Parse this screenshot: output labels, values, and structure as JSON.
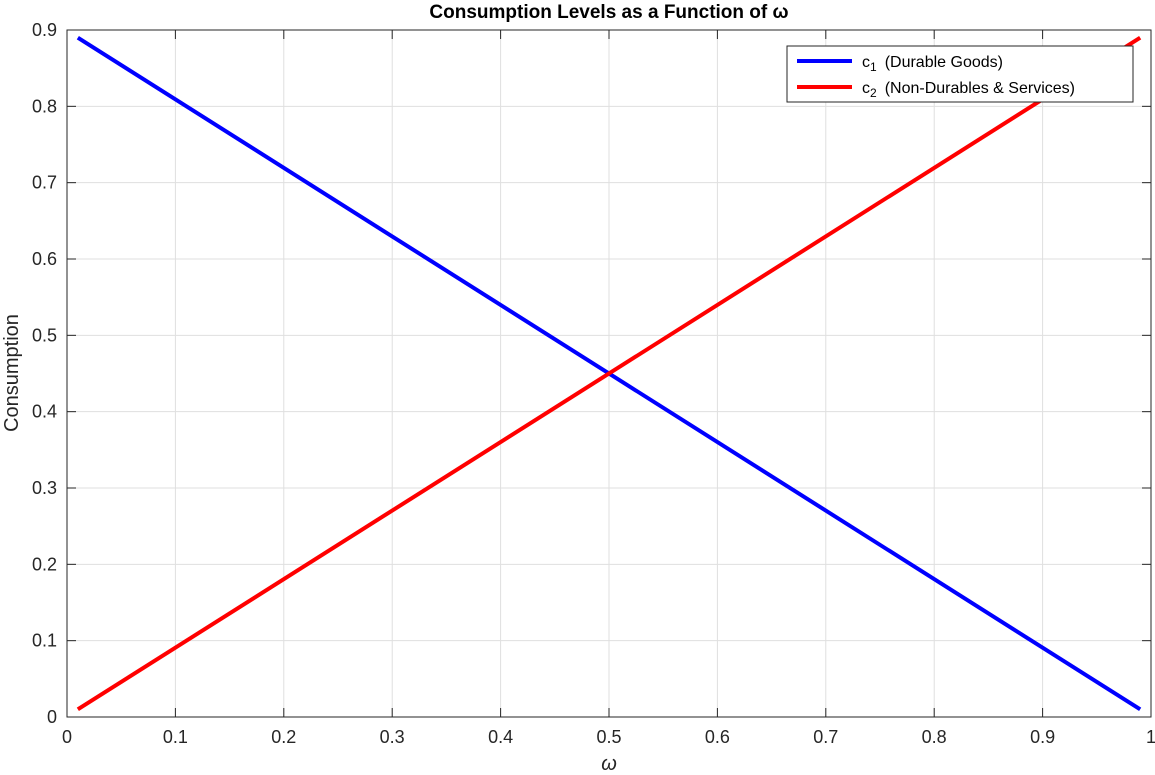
{
  "chart_data": {
    "type": "line",
    "title": "Consumption Levels as a Function of ω",
    "xlabel": "ω",
    "ylabel": "Consumption",
    "xlim": [
      0,
      1
    ],
    "ylim": [
      0,
      0.9
    ],
    "x_ticks": [
      "0",
      "0.1",
      "0.2",
      "0.3",
      "0.4",
      "0.5",
      "0.6",
      "0.7",
      "0.8",
      "0.9",
      "1"
    ],
    "y_ticks": [
      "0",
      "0.1",
      "0.2",
      "0.3",
      "0.4",
      "0.5",
      "0.6",
      "0.7",
      "0.8",
      "0.9"
    ],
    "grid": true,
    "legend_position": "top-right",
    "series": [
      {
        "name": "c",
        "subscript": "1",
        "label_suffix": "(Durable  Goods)",
        "color": "#0000ff",
        "x": [
          0.01,
          0.99
        ],
        "y": [
          0.89,
          0.01
        ]
      },
      {
        "name": "c",
        "subscript": "2",
        "label_suffix": "(Non-Durables  &  Services)",
        "color": "#ff0000",
        "x": [
          0.01,
          0.99
        ],
        "y": [
          0.01,
          0.89
        ]
      }
    ]
  }
}
